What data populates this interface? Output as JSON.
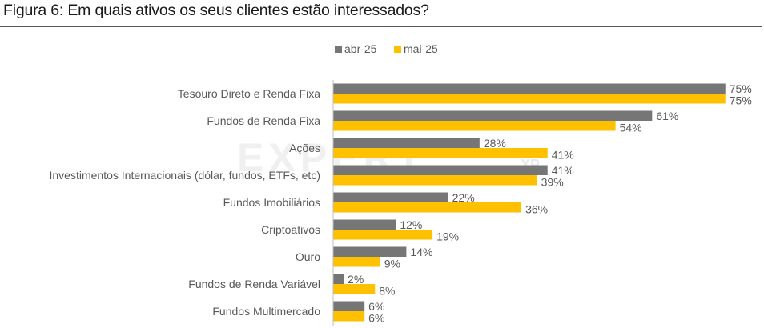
{
  "figure": {
    "title": "Figura 6: Em quais ativos os seus clientes estão interessados?"
  },
  "watermark": {
    "text": "EXPERT",
    "sub": "XP"
  },
  "colors": {
    "series0": "#767676",
    "series1": "#FFC000",
    "axis": "#bfbfbf",
    "label": "#595959"
  },
  "chart_data": {
    "type": "bar",
    "orientation": "horizontal",
    "categories": [
      "Tesouro Direto e Renda Fixa",
      "Fundos de Renda Fixa",
      "Ações",
      "Investimentos Internacionais (dólar, fundos, ETFs, etc)",
      "Fundos Imobiliários",
      "Criptoativos",
      "Ouro",
      "Fundos de Renda Variável",
      "Fundos Multimercado"
    ],
    "series": [
      {
        "name": "abr-25",
        "values": [
          75,
          61,
          28,
          41,
          22,
          12,
          14,
          2,
          6
        ]
      },
      {
        "name": "mai-25",
        "values": [
          75,
          54,
          41,
          39,
          36,
          19,
          9,
          8,
          6
        ]
      }
    ],
    "value_suffix": "%",
    "xlim": [
      0,
      80
    ],
    "legend": "top-center",
    "grid": false
  }
}
